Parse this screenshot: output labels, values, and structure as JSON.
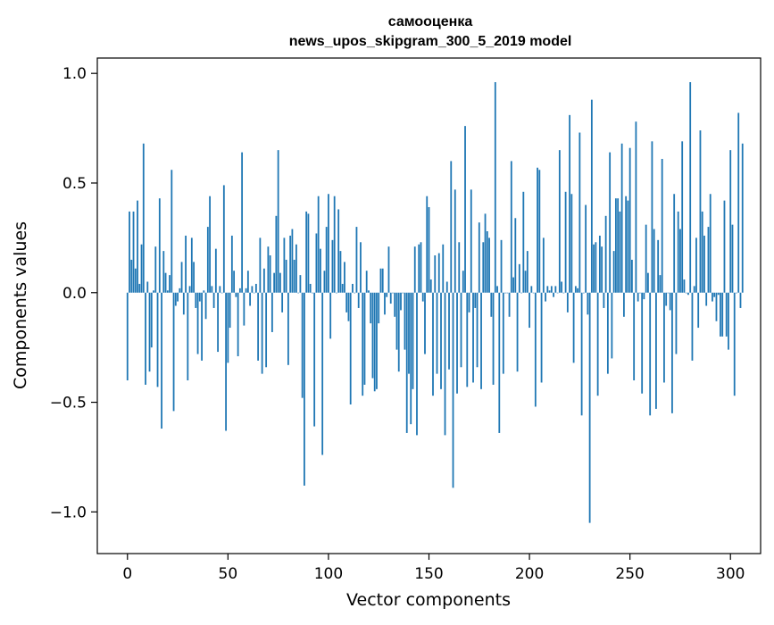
{
  "chart_data": {
    "type": "bar",
    "title": "самооценка",
    "subtitle": "news_upos_skipgram_300_5_2019 model",
    "xlabel": "Vector components",
    "ylabel": "Components values",
    "xlim": [
      -15,
      315
    ],
    "ylim": [
      -1.19,
      1.07
    ],
    "xticks": [
      0,
      50,
      100,
      150,
      200,
      250,
      300
    ],
    "xtick_labels": [
      "0",
      "50",
      "100",
      "150",
      "200",
      "250",
      "300"
    ],
    "yticks": [
      1.0,
      0.5,
      0.0,
      -0.5,
      -1.0
    ],
    "ytick_labels": [
      "1.0",
      "0.5",
      "0.0",
      "−0.5",
      "−1.0"
    ],
    "grid": false,
    "bar_color": "#1f77b4",
    "values": [
      -0.4,
      0.37,
      0.15,
      0.37,
      0.11,
      0.42,
      0.04,
      0.22,
      0.68,
      -0.42,
      0.05,
      -0.36,
      -0.25,
      0.01,
      0.21,
      -0.43,
      0.43,
      -0.62,
      0.19,
      0.09,
      0.01,
      0.08,
      0.56,
      -0.54,
      -0.06,
      -0.04,
      0.02,
      0.14,
      -0.1,
      0.26,
      -0.4,
      0.03,
      0.25,
      0.14,
      -0.07,
      -0.28,
      -0.04,
      -0.31,
      0.01,
      -0.12,
      0.3,
      0.44,
      0.03,
      -0.07,
      0.2,
      -0.27,
      0.03,
      0.0,
      0.49,
      -0.63,
      -0.32,
      -0.16,
      0.26,
      0.1,
      -0.02,
      -0.29,
      0.02,
      0.64,
      -0.15,
      0.02,
      0.1,
      -0.06,
      0.03,
      0.0,
      0.04,
      -0.31,
      0.25,
      -0.37,
      0.11,
      -0.34,
      0.21,
      0.17,
      -0.18,
      0.09,
      0.35,
      0.65,
      0.09,
      -0.09,
      0.25,
      0.15,
      -0.33,
      0.26,
      0.29,
      0.15,
      0.22,
      0.0,
      0.08,
      -0.48,
      -0.88,
      0.37,
      0.36,
      0.04,
      0.0,
      -0.61,
      0.27,
      0.44,
      0.2,
      -0.74,
      0.1,
      0.3,
      0.45,
      -0.21,
      0.24,
      0.44,
      0.0,
      0.38,
      0.19,
      0.04,
      0.14,
      -0.09,
      -0.13,
      -0.51,
      0.04,
      0.0,
      0.3,
      -0.07,
      0.23,
      -0.47,
      -0.42,
      0.1,
      0.01,
      -0.14,
      -0.39,
      -0.45,
      -0.44,
      -0.14,
      0.11,
      0.11,
      -0.1,
      -0.02,
      0.21,
      -0.05,
      0.0,
      -0.11,
      -0.26,
      -0.36,
      -0.08,
      0.0,
      -0.26,
      -0.64,
      -0.37,
      -0.6,
      -0.44,
      0.21,
      -0.65,
      0.22,
      0.23,
      -0.04,
      -0.28,
      0.44,
      0.39,
      0.06,
      -0.47,
      0.17,
      -0.37,
      0.18,
      -0.44,
      0.22,
      -0.65,
      0.05,
      -0.35,
      0.6,
      -0.89,
      0.47,
      -0.46,
      0.23,
      -0.34,
      0.1,
      0.76,
      -0.43,
      -0.09,
      0.47,
      -0.41,
      -0.07,
      -0.34,
      0.32,
      -0.44,
      0.23,
      0.36,
      0.28,
      0.25,
      -0.11,
      -0.42,
      0.96,
      0.03,
      -0.64,
      0.24,
      -0.37,
      0.0,
      0.0,
      -0.11,
      0.6,
      0.07,
      0.34,
      -0.36,
      0.13,
      0.0,
      0.46,
      0.1,
      0.19,
      -0.16,
      0.03,
      0.0,
      -0.52,
      0.57,
      0.56,
      -0.41,
      0.25,
      -0.04,
      0.03,
      0.01,
      0.03,
      -0.02,
      0.03,
      0.0,
      0.65,
      0.05,
      0.0,
      0.46,
      -0.09,
      0.81,
      0.45,
      -0.32,
      0.03,
      0.02,
      0.73,
      -0.56,
      0.0,
      0.4,
      -0.1,
      -1.05,
      0.88,
      0.22,
      0.23,
      -0.47,
      0.26,
      0.21,
      -0.07,
      0.35,
      -0.37,
      0.64,
      -0.3,
      0.19,
      0.43,
      0.43,
      0.37,
      0.68,
      -0.11,
      0.44,
      0.42,
      0.66,
      0.15,
      -0.4,
      0.78,
      -0.04,
      0.0,
      -0.46,
      -0.03,
      0.31,
      0.09,
      -0.56,
      0.69,
      0.29,
      -0.53,
      0.24,
      0.08,
      0.61,
      -0.41,
      -0.06,
      0.0,
      -0.08,
      -0.55,
      0.45,
      -0.28,
      0.37,
      0.29,
      0.69,
      0.06,
      0.0,
      -0.01,
      0.96,
      -0.31,
      0.03,
      0.25,
      -0.16,
      0.74,
      0.37,
      0.26,
      -0.06,
      0.3,
      0.45,
      -0.04,
      -0.02,
      -0.13,
      -0.01,
      -0.2,
      -0.2,
      0.42,
      -0.2,
      -0.26,
      0.65,
      0.31,
      -0.47,
      0.0,
      0.82,
      -0.07,
      0.68
    ]
  }
}
